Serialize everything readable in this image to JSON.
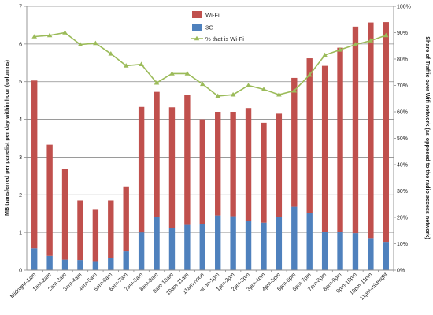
{
  "chart_data": {
    "type": "bar",
    "stacked": true,
    "categories": [
      "Midnight-1am",
      "1am-2am",
      "2am-3am",
      "3am-4am",
      "4am-5am",
      "5am-6am",
      "6am-7am",
      "7am-8am",
      "8am-9am",
      "9am-10am",
      "10am-11am",
      "11am-noon",
      "noon-1pm",
      "1pm-2pm",
      "2pm-3pm",
      "3pm-4pm",
      "4pm-5pm",
      "5pm-6pm",
      "6pm-7pm",
      "7pm-8pm",
      "8pm-9pm",
      "9pm-10pm",
      "10pm-11pm",
      "11pm-midnight"
    ],
    "series": [
      {
        "name": "3G",
        "type": "bar",
        "axis": "left",
        "color": "#4f81bd",
        "values": [
          0.58,
          0.38,
          0.28,
          0.27,
          0.22,
          0.33,
          0.5,
          1.0,
          1.4,
          1.12,
          1.2,
          1.22,
          1.45,
          1.43,
          1.3,
          1.26,
          1.4,
          1.68,
          1.52,
          1.02,
          1.02,
          0.98,
          0.85,
          0.75
        ]
      },
      {
        "name": "Wi-Fi",
        "type": "bar",
        "axis": "left",
        "color": "#c0504d",
        "values": [
          4.45,
          2.95,
          2.4,
          1.58,
          1.38,
          1.52,
          1.72,
          3.33,
          3.33,
          3.2,
          3.45,
          2.78,
          2.75,
          2.77,
          3.0,
          2.65,
          2.75,
          3.42,
          4.1,
          4.4,
          4.88,
          5.48,
          5.72,
          5.83
        ]
      },
      {
        "name": "% that is Wi-Fi",
        "type": "line",
        "axis": "right",
        "color": "#9bbb59",
        "values": [
          88.5,
          89,
          90,
          85.5,
          86,
          82,
          77.5,
          78,
          71,
          74.5,
          74.5,
          70.5,
          66,
          66.5,
          70,
          68.5,
          66.5,
          68,
          74,
          81.5,
          83.5,
          85.5,
          87,
          89
        ]
      }
    ],
    "ylabel": "MB transferred per panelist per day within hour (columns)",
    "y2label": "Share of Traffic over Wifi network (as opposed to the radio access network)",
    "ylim": [
      0,
      7
    ],
    "y2lim": [
      0,
      100
    ],
    "yticks": [
      "0",
      "1",
      "2",
      "3",
      "4",
      "5",
      "6",
      "7"
    ],
    "y2ticks": [
      "0%",
      "10%",
      "20%",
      "30%",
      "40%",
      "50%",
      "60%",
      "70%",
      "80%",
      "90%",
      "100%"
    ],
    "grid": true,
    "legend_position": "top-right"
  }
}
